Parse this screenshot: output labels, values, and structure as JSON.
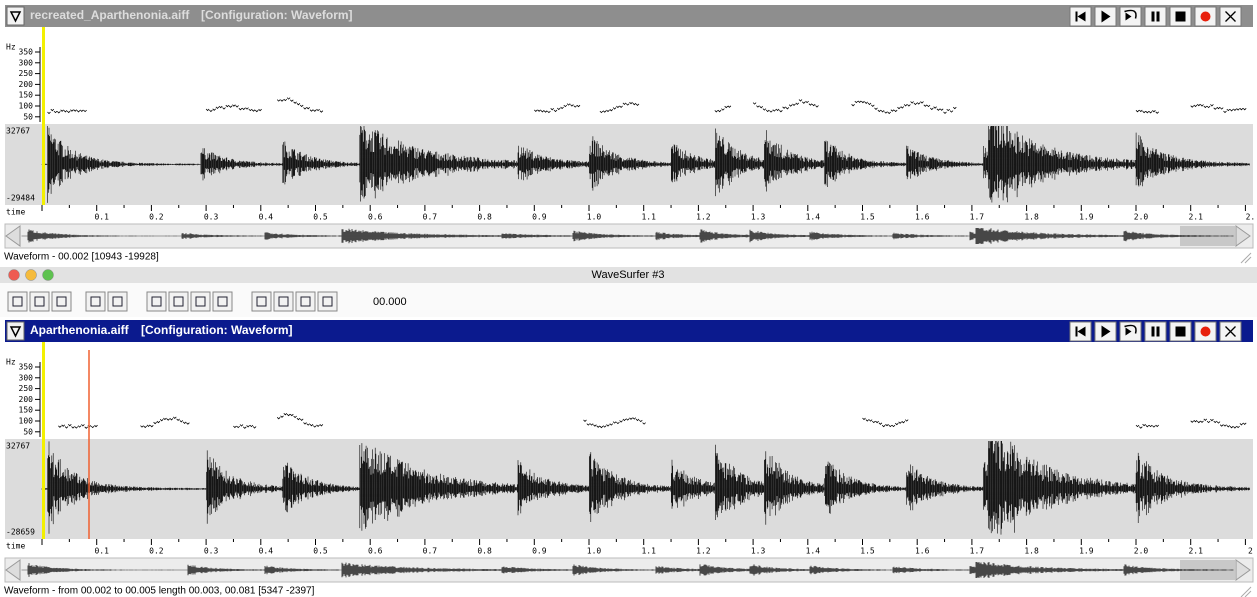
{
  "window_title": "WaveSurfer #3",
  "toolbar": {
    "time": "00.000"
  },
  "panes": [
    {
      "file": "recreated_Aparthenonia.aiff",
      "configuration": "[Configuration: Waveform]",
      "pitch_unit": "Hz",
      "pitch_ticks": [
        "350",
        "300",
        "250",
        "200",
        "150",
        "100",
        "50"
      ],
      "amp_max": "32767",
      "amp_min": "-29484",
      "time_label": "time",
      "time_ticks": [
        "0.1",
        "0.2",
        "0.3",
        "0.4",
        "0.5",
        "0.6",
        "0.7",
        "0.8",
        "0.9",
        "1.0",
        "1.1",
        "1.2",
        "1.3",
        "1.4",
        "1.5",
        "1.6",
        "1.7",
        "1.8",
        "1.9",
        "2.0",
        "2.1",
        "2."
      ],
      "status": "Waveform - 00.002 [10943 -19928]"
    },
    {
      "file": "Aparthenonia.aiff",
      "configuration": "[Configuration: Waveform]",
      "pitch_unit": "Hz",
      "pitch_ticks": [
        "350",
        "300",
        "250",
        "200",
        "150",
        "100",
        "50"
      ],
      "amp_max": "32767",
      "amp_min": "-28659",
      "time_label": "time",
      "time_ticks": [
        "0.1",
        "0.2",
        "0.3",
        "0.4",
        "0.5",
        "0.6",
        "0.7",
        "0.8",
        "0.9",
        "1.0",
        "1.1",
        "1.2",
        "1.3",
        "1.4",
        "1.5",
        "1.6",
        "1.7",
        "1.8",
        "1.9",
        "2.0",
        "2.1",
        "2"
      ],
      "status": "Waveform - from 00.002 to 00.005 length 00.003, 00.081 [5347 -2397]"
    }
  ]
}
